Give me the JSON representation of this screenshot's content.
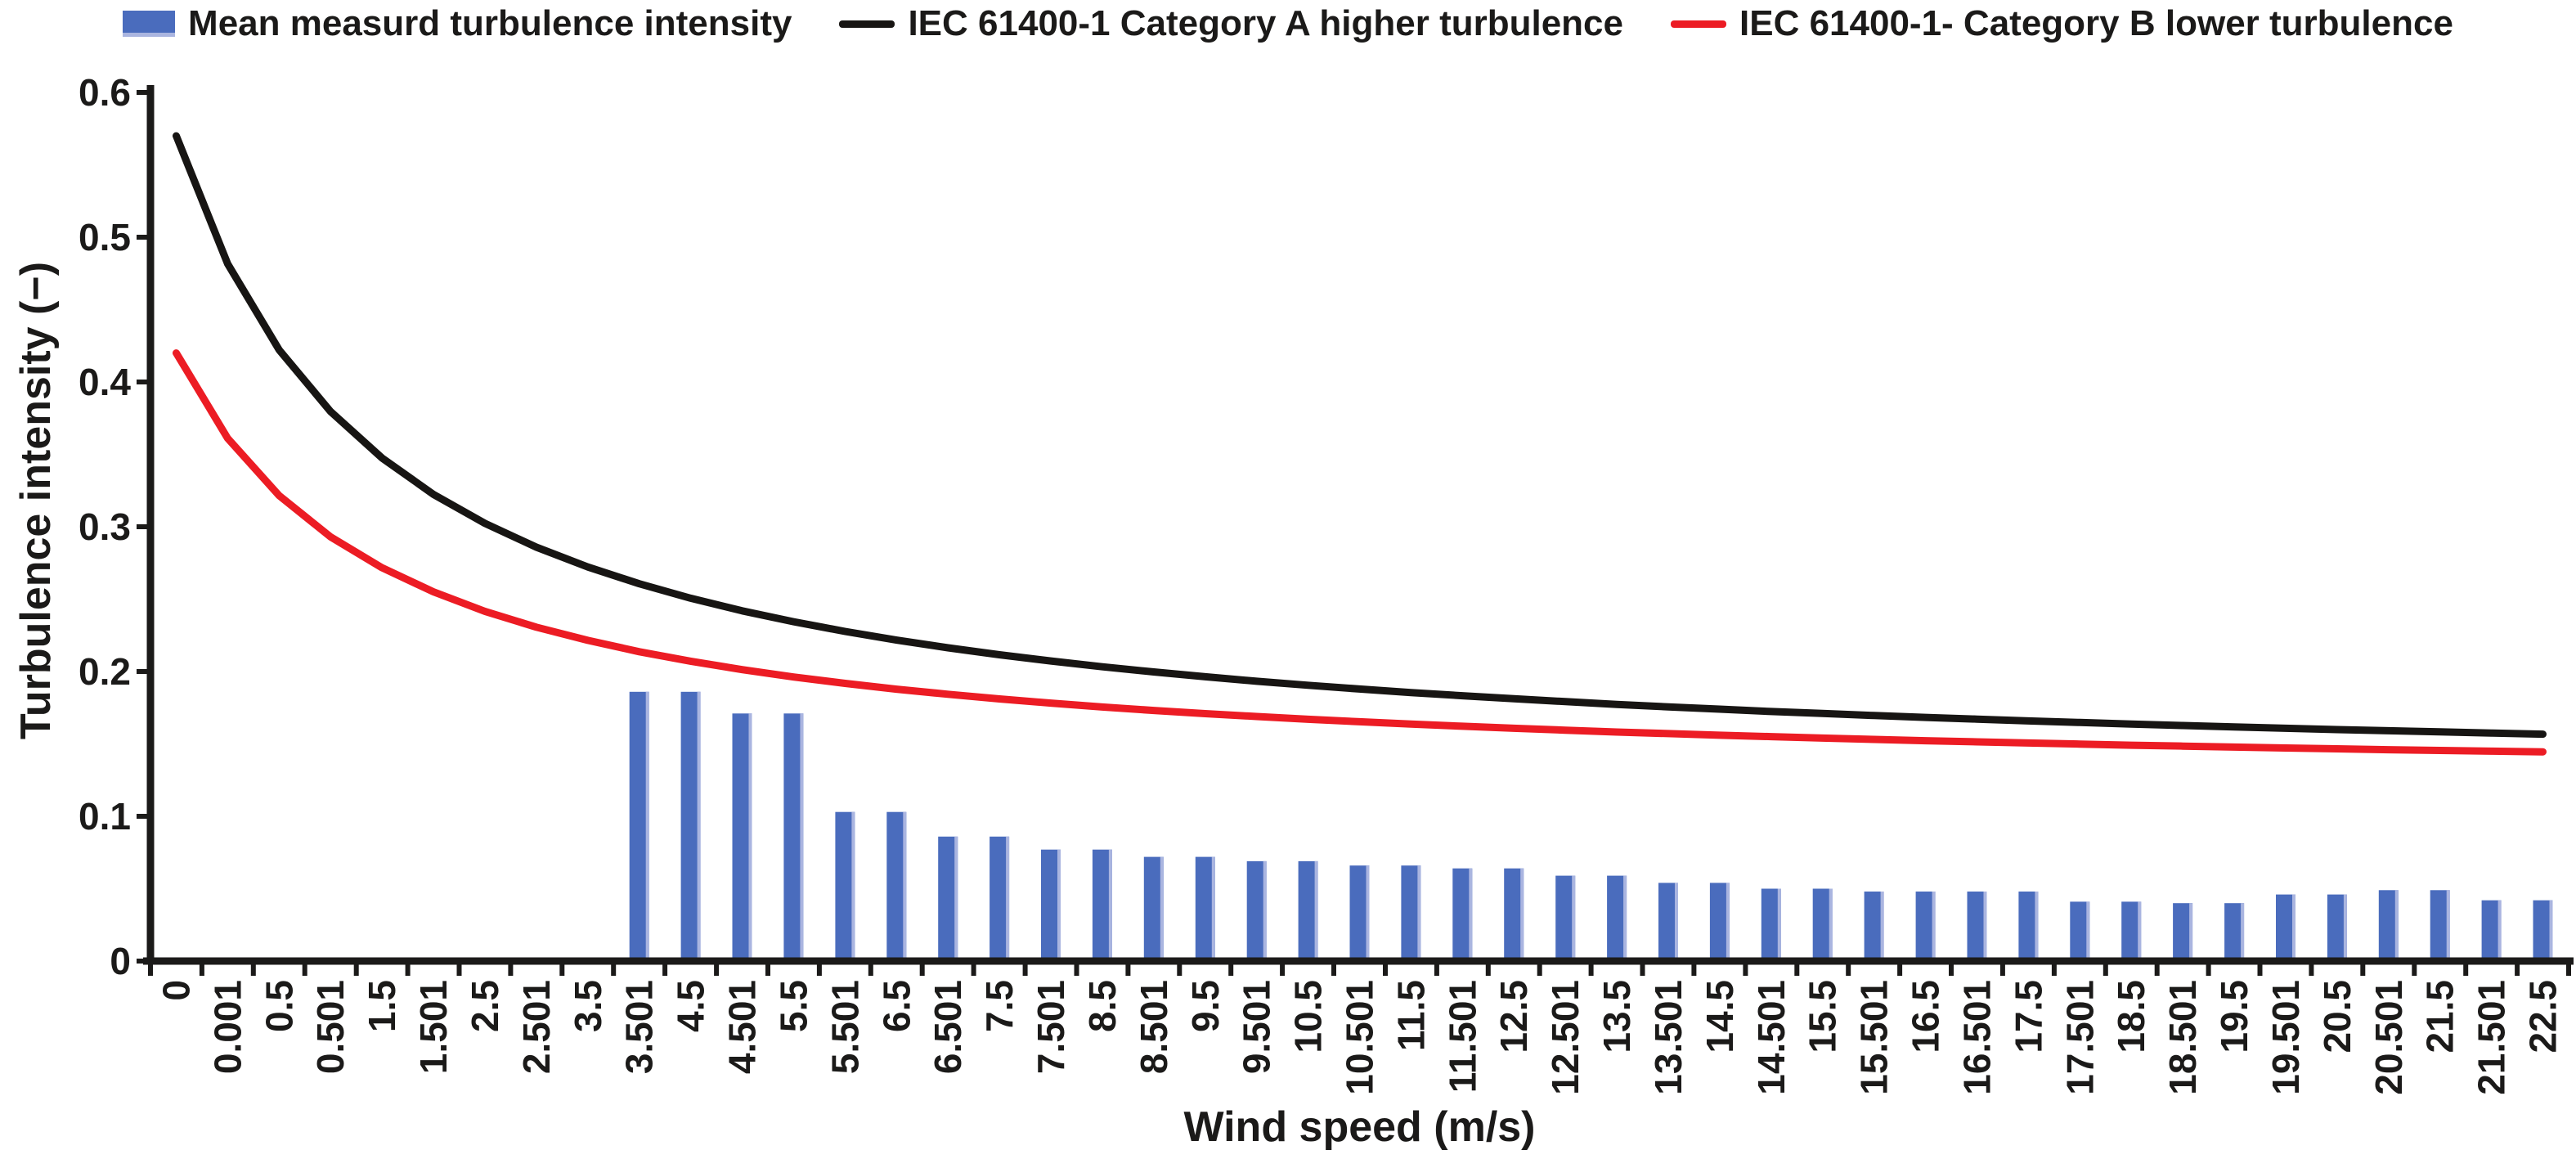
{
  "figure": {
    "legend": {
      "items": [
        {
          "label": "Mean measurd turbulence intensity",
          "marker": "bar-swatch",
          "color": "#4a6cbd"
        },
        {
          "label": "IEC 61400-1 Category A higher turbulence",
          "marker": "line",
          "color": "#171513"
        },
        {
          "label": "IEC 61400-1- Category B lower turbulence",
          "marker": "line",
          "color": "#ec1c24"
        }
      ]
    },
    "x_axis": {
      "title": "Wind speed (m/s)",
      "tick_labels": [
        "0",
        "0.001",
        "0.5",
        "0.501",
        "1.5",
        "1.501",
        "2.5",
        "2.501",
        "3.5",
        "3.501",
        "4.5",
        "4.501",
        "5.5",
        "5.501",
        "6.5",
        "6.501",
        "7.5",
        "7.501",
        "8.5",
        "8.501",
        "9.5",
        "9.501",
        "10.5",
        "10.501",
        "11.5",
        "11.501",
        "12.5",
        "12.501",
        "13.5",
        "13.501",
        "14.5",
        "14.501",
        "15.5",
        "15.501",
        "16.5",
        "16.501",
        "17.5",
        "17.501",
        "18.5",
        "18.501",
        "19.5",
        "19.501",
        "20.5",
        "20.501",
        "21.5",
        "21.501",
        "22.5"
      ]
    },
    "y_axis": {
      "title": "Turbulence intensity (−)",
      "tick_labels": [
        "0",
        "0.1",
        "0.2",
        "0.3",
        "0.4",
        "0.5",
        "0.6"
      ],
      "tick_values": [
        0,
        0.1,
        0.2,
        0.3,
        0.4,
        0.5,
        0.6
      ]
    }
  },
  "chart_data": {
    "type": "combo",
    "xlabel": "Wind speed (m/s)",
    "ylabel": "Turbulence intensity (−)",
    "ylim": [
      0,
      0.6
    ],
    "grid": false,
    "legend_position": "top",
    "categories": [
      "0",
      "0.001",
      "0.5",
      "0.501",
      "1.5",
      "1.501",
      "2.5",
      "2.501",
      "3.5",
      "3.501",
      "4.5",
      "4.501",
      "5.5",
      "5.501",
      "6.5",
      "6.501",
      "7.5",
      "7.501",
      "8.5",
      "8.501",
      "9.5",
      "9.501",
      "10.5",
      "10.501",
      "11.5",
      "11.501",
      "12.5",
      "12.501",
      "13.5",
      "13.501",
      "14.5",
      "14.501",
      "15.5",
      "15.501",
      "16.5",
      "16.501",
      "17.5",
      "17.501",
      "18.5",
      "18.501",
      "19.5",
      "19.501",
      "20.5",
      "20.501",
      "21.5",
      "21.501",
      "22.5"
    ],
    "series": [
      {
        "name": "Mean measurd turbulence intensity",
        "type": "bar",
        "color": "#4a6cbd",
        "values": [
          null,
          null,
          null,
          null,
          null,
          null,
          null,
          null,
          null,
          0.186,
          0.186,
          0.171,
          0.171,
          0.103,
          0.103,
          0.086,
          0.086,
          0.077,
          0.077,
          0.072,
          0.072,
          0.069,
          0.069,
          0.066,
          0.066,
          0.064,
          0.064,
          0.059,
          0.059,
          0.054,
          0.054,
          0.05,
          0.05,
          0.048,
          0.048,
          0.048,
          0.048,
          0.041,
          0.041,
          0.04,
          0.04,
          0.046,
          0.046,
          0.049,
          0.049,
          0.042,
          0.042
        ]
      },
      {
        "name": "IEC 61400-1 Category A higher turbulence",
        "type": "line",
        "color": "#171513",
        "values": [
          0.57,
          0.4816,
          0.4222,
          0.3796,
          0.3475,
          0.3224,
          0.3024,
          0.2859,
          0.2722,
          0.2606,
          0.2506,
          0.2419,
          0.2344,
          0.2277,
          0.2217,
          0.2164,
          0.2116,
          0.2073,
          0.2033,
          0.1997,
          0.1964,
          0.1933,
          0.1905,
          0.1879,
          0.1855,
          0.1833,
          0.1812,
          0.1792,
          0.1773,
          0.1756,
          0.174,
          0.1724,
          0.171,
          0.1696,
          0.1683,
          0.1671,
          0.1659,
          0.1648,
          0.1637,
          0.1627,
          0.1617,
          0.1608,
          0.1599,
          0.1591,
          0.1583,
          0.1575,
          0.1567
        ]
      },
      {
        "name": "IEC 61400-1- Category B lower turbulence",
        "type": "line",
        "color": "#ec1c24",
        "values": [
          0.42,
          0.3611,
          0.3215,
          0.293,
          0.2717,
          0.255,
          0.2416,
          0.2306,
          0.2215,
          0.2137,
          0.2071,
          0.2013,
          0.1962,
          0.1918,
          0.1878,
          0.1843,
          0.1811,
          0.1782,
          0.1755,
          0.1731,
          0.1709,
          0.1689,
          0.167,
          0.1653,
          0.1637,
          0.1622,
          0.1608,
          0.1595,
          0.1582,
          0.1571,
          0.156,
          0.155,
          0.154,
          0.1531,
          0.1522,
          0.1514,
          0.1506,
          0.1499,
          0.1491,
          0.1485,
          0.1478,
          0.1472,
          0.1466,
          0.146,
          0.1455,
          0.145,
          0.1445
        ]
      }
    ]
  }
}
